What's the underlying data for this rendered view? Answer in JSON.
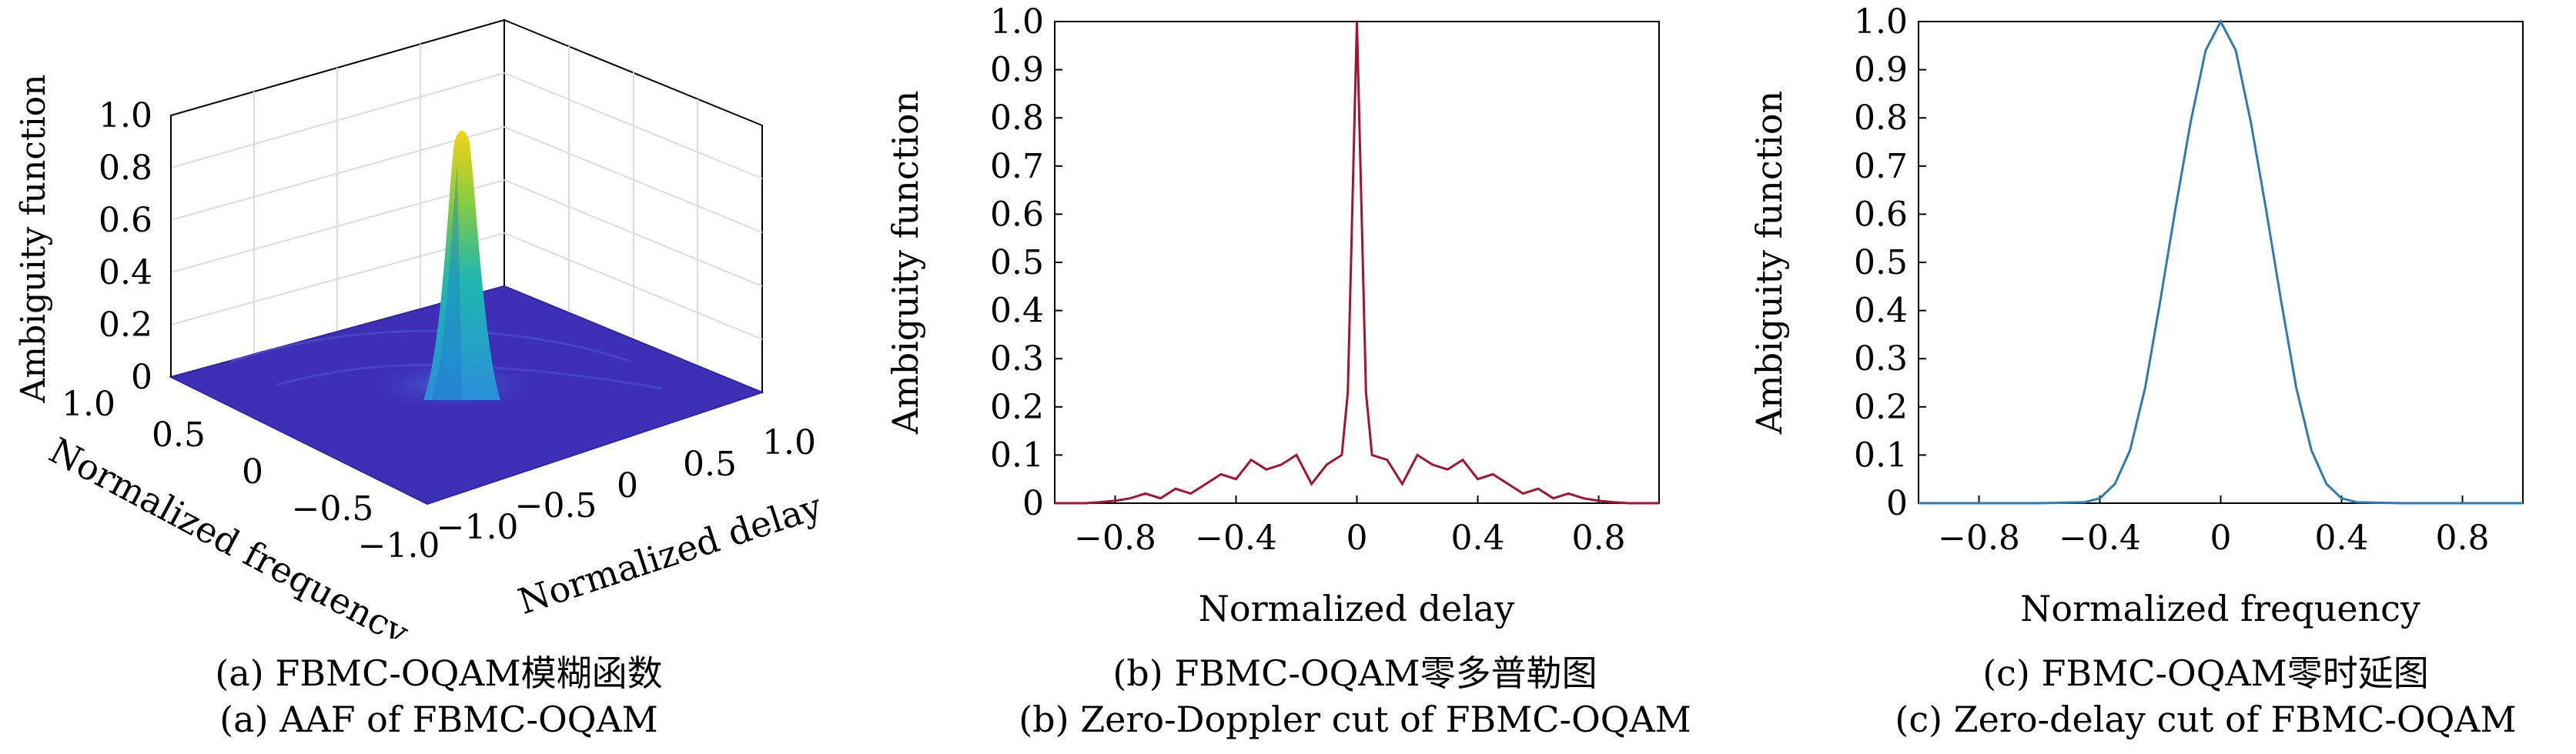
{
  "panels": [
    {
      "caption_cn": "(a) FBMC-OQAM模糊函数",
      "caption_en": "(a) AAF of FBMC-OQAM"
    },
    {
      "caption_cn": "(b) FBMC-OQAM零多普勒图",
      "caption_en": "(b) Zero-Doppler cut of FBMC-OQAM"
    },
    {
      "caption_cn": "(c) FBMC-OQAM零时延图",
      "caption_en": "(c) Zero-delay cut of FBMC-OQAM"
    }
  ],
  "chart_data": [
    {
      "type": "surface",
      "zlabel": "Ambiguity function",
      "xlabel": "Normalized delay",
      "ylabel": "Normalized frequency",
      "x_ticks": [
        "−1.0",
        "−0.5",
        "0",
        "0.5",
        "1.0"
      ],
      "y_ticks": [
        "1.0",
        "0.5",
        "0",
        "−0.5",
        "−1.0"
      ],
      "z_ticks": [
        "0",
        "0.2",
        "0.4",
        "0.6",
        "0.8",
        "1.0"
      ],
      "xlim": [
        -1,
        1
      ],
      "ylim": [
        -1,
        1
      ],
      "zlim": [
        0,
        1
      ],
      "peak": {
        "x": 0,
        "y": 0,
        "z": 1.0
      },
      "colormap": "parula",
      "grid": true
    },
    {
      "type": "line",
      "xlabel": "Normalized delay",
      "ylabel": "Ambiguity function",
      "x_ticks": [
        "−0.8",
        "−0.4",
        "0",
        "0.4",
        "0.8"
      ],
      "y_ticks": [
        "0",
        "0.1",
        "0.2",
        "0.3",
        "0.4",
        "0.5",
        "0.6",
        "0.7",
        "0.8",
        "0.9",
        "1.0"
      ],
      "xlim": [
        -1,
        1
      ],
      "ylim": [
        0,
        1
      ],
      "color": "#a2142f",
      "series": [
        {
          "x": [
            -1.0,
            -0.9,
            -0.85,
            -0.8,
            -0.75,
            -0.7,
            -0.65,
            -0.6,
            -0.55,
            -0.5,
            -0.45,
            -0.4,
            -0.35,
            -0.3,
            -0.25,
            -0.2,
            -0.15,
            -0.1,
            -0.05,
            -0.03,
            0,
            0.03,
            0.05,
            0.1,
            0.15,
            0.2,
            0.25,
            0.3,
            0.35,
            0.4,
            0.45,
            0.5,
            0.55,
            0.6,
            0.65,
            0.7,
            0.75,
            0.8,
            0.85,
            0.9,
            1.0
          ],
          "y": [
            0,
            0,
            0.002,
            0.005,
            0.01,
            0.02,
            0.01,
            0.03,
            0.02,
            0.04,
            0.06,
            0.05,
            0.09,
            0.07,
            0.08,
            0.1,
            0.04,
            0.08,
            0.1,
            0.23,
            1.0,
            0.23,
            0.1,
            0.09,
            0.04,
            0.1,
            0.08,
            0.07,
            0.09,
            0.05,
            0.06,
            0.04,
            0.02,
            0.03,
            0.01,
            0.02,
            0.01,
            0.005,
            0.002,
            0,
            0
          ]
        }
      ]
    },
    {
      "type": "line",
      "xlabel": "Normalized frequency",
      "ylabel": "Ambiguity function",
      "x_ticks": [
        "−0.8",
        "−0.4",
        "0",
        "0.4",
        "0.8"
      ],
      "y_ticks": [
        "0",
        "0.1",
        "0.2",
        "0.3",
        "0.4",
        "0.5",
        "0.6",
        "0.7",
        "0.8",
        "0.9",
        "1.0"
      ],
      "xlim": [
        -1,
        1
      ],
      "ylim": [
        0,
        1
      ],
      "color": "#2e7ab2",
      "series": [
        {
          "x": [
            -1.0,
            -0.6,
            -0.45,
            -0.4,
            -0.35,
            -0.3,
            -0.25,
            -0.2,
            -0.15,
            -0.1,
            -0.05,
            0,
            0.05,
            0.1,
            0.15,
            0.2,
            0.25,
            0.3,
            0.35,
            0.4,
            0.45,
            0.6,
            1.0
          ],
          "y": [
            0,
            0,
            0.002,
            0.01,
            0.04,
            0.11,
            0.24,
            0.42,
            0.61,
            0.79,
            0.94,
            1.0,
            0.94,
            0.79,
            0.61,
            0.42,
            0.24,
            0.11,
            0.04,
            0.01,
            0.002,
            0,
            0
          ]
        }
      ]
    }
  ]
}
